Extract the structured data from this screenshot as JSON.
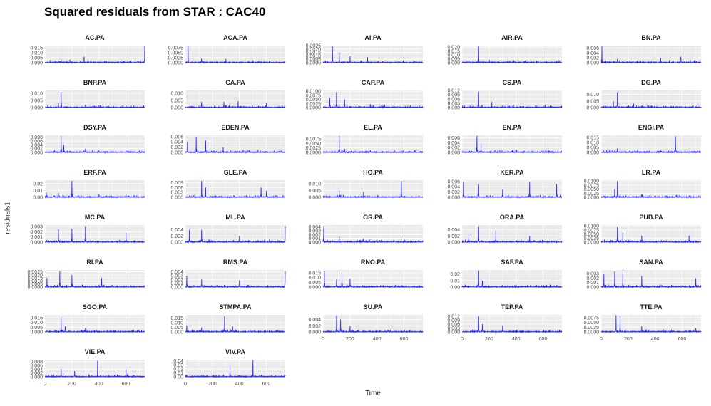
{
  "title": "Squared residuals from STAR : CAC40",
  "colors": {
    "line": "#2b2bff",
    "panel": "#ebebeb",
    "grid": "#ffffff"
  },
  "chart_data": {
    "type": "line",
    "title": "Squared residuals from STAR : CAC40",
    "xlabel": "Time",
    "ylabel": "residuals1",
    "xlim": [
      0,
      740
    ],
    "x_ticks": [
      0,
      200,
      400,
      600
    ],
    "grid": true,
    "legend": "none",
    "n_points": 740,
    "facets": [
      {
        "name": "AC.PA",
        "yticks": [
          "0.000",
          "0.005",
          "0.010",
          "0.015"
        ],
        "ymax": 0.017,
        "spikes": [
          [
            120,
            0.004
          ],
          [
            185,
            0.003
          ],
          [
            290,
            0.006
          ],
          [
            740,
            0.017
          ]
        ]
      },
      {
        "name": "ACA.PA",
        "yticks": [
          "0.0000",
          "0.0025",
          "0.0050",
          "0.0075"
        ],
        "ymax": 0.0085,
        "spikes": [
          [
            20,
            0.0085
          ],
          [
            120,
            0.002
          ],
          [
            300,
            0.0018
          ],
          [
            500,
            0.0012
          ]
        ]
      },
      {
        "name": "AI.PA",
        "yticks": [
          "0.0000",
          "0.0005",
          "0.0010",
          "0.0015",
          "0.0020",
          "0.0025"
        ],
        "ymax": 0.0025,
        "spikes": [
          [
            70,
            0.0024
          ],
          [
            120,
            0.0016
          ],
          [
            200,
            0.001
          ],
          [
            330,
            0.0008
          ]
        ]
      },
      {
        "name": "AIR.PA",
        "yticks": [
          "0.000",
          "0.005",
          "0.010",
          "0.015",
          "0.020"
        ],
        "ymax": 0.022,
        "spikes": [
          [
            120,
            0.021
          ],
          [
            200,
            0.004
          ],
          [
            380,
            0.003
          ]
        ]
      },
      {
        "name": "BN.PA",
        "yticks": [
          "0.000",
          "0.002",
          "0.004",
          "0.006"
        ],
        "ymax": 0.007,
        "spikes": [
          [
            5,
            0.0068
          ],
          [
            120,
            0.0015
          ],
          [
            440,
            0.002
          ],
          [
            590,
            0.0025
          ]
        ]
      },
      {
        "name": "BNP.PA",
        "yticks": [
          "0.000",
          "0.005",
          "0.010"
        ],
        "ymax": 0.012,
        "spikes": [
          [
            120,
            0.011
          ],
          [
            100,
            0.003
          ],
          [
            300,
            0.002
          ],
          [
            600,
            0.0015
          ]
        ]
      },
      {
        "name": "CA.PA",
        "yticks": [
          "0.000",
          "0.005",
          "0.010"
        ],
        "ymax": 0.012,
        "spikes": [
          [
            120,
            0.004
          ],
          [
            285,
            0.004
          ],
          [
            390,
            0.0045
          ],
          [
            600,
            0.003
          ]
        ]
      },
      {
        "name": "CAP.PA",
        "yticks": [
          "0.0000",
          "0.0025",
          "0.0050",
          "0.0075",
          "0.0100"
        ],
        "ymax": 0.0105,
        "spikes": [
          [
            50,
            0.006
          ],
          [
            100,
            0.0095
          ],
          [
            160,
            0.005
          ],
          [
            350,
            0.002
          ]
        ]
      },
      {
        "name": "CS.PA",
        "yticks": [
          "0.000",
          "0.003",
          "0.006",
          "0.009",
          "0.012"
        ],
        "ymax": 0.012,
        "spikes": [
          [
            120,
            0.011
          ],
          [
            220,
            0.004
          ],
          [
            380,
            0.002
          ]
        ]
      },
      {
        "name": "DG.PA",
        "yticks": [
          "0.000",
          "0.005",
          "0.010"
        ],
        "ymax": 0.013,
        "spikes": [
          [
            120,
            0.0115
          ],
          [
            90,
            0.005
          ],
          [
            240,
            0.003
          ]
        ]
      },
      {
        "name": "DSY.PA",
        "yticks": [
          "0.000",
          "0.002",
          "0.004",
          "0.006",
          "0.008"
        ],
        "ymax": 0.009,
        "spikes": [
          [
            120,
            0.0085
          ],
          [
            140,
            0.004
          ],
          [
            300,
            0.002
          ],
          [
            600,
            0.0015
          ]
        ]
      },
      {
        "name": "EDEN.PA",
        "yticks": [
          "0.000",
          "0.002",
          "0.004",
          "0.006"
        ],
        "ymax": 0.0065,
        "spikes": [
          [
            15,
            0.004
          ],
          [
            80,
            0.006
          ],
          [
            150,
            0.0045
          ],
          [
            280,
            0.002
          ]
        ]
      },
      {
        "name": "EL.PA",
        "yticks": [
          "0.0000",
          "0.0025",
          "0.0050",
          "0.0075"
        ],
        "ymax": 0.0095,
        "spikes": [
          [
            120,
            0.009
          ],
          [
            160,
            0.002
          ],
          [
            350,
            0.0015
          ]
        ]
      },
      {
        "name": "EN.PA",
        "yticks": [
          "0.000",
          "0.002",
          "0.004",
          "0.006"
        ],
        "ymax": 0.007,
        "spikes": [
          [
            110,
            0.0068
          ],
          [
            140,
            0.004
          ],
          [
            400,
            0.0012
          ]
        ]
      },
      {
        "name": "ENGI.PA",
        "yticks": [
          "0.000",
          "0.005",
          "0.010",
          "0.015"
        ],
        "ymax": 0.017,
        "spikes": [
          [
            120,
            0.004
          ],
          [
            270,
            0.003
          ],
          [
            550,
            0.016
          ]
        ]
      },
      {
        "name": "ERF.PA",
        "yticks": [
          "0.00",
          "0.01",
          "0.02"
        ],
        "ymax": 0.025,
        "spikes": [
          [
            10,
            0.007
          ],
          [
            100,
            0.006
          ],
          [
            200,
            0.024
          ],
          [
            400,
            0.005
          ],
          [
            600,
            0.004
          ]
        ]
      },
      {
        "name": "GLE.PA",
        "yticks": [
          "0.000",
          "0.003",
          "0.006",
          "0.009"
        ],
        "ymax": 0.0105,
        "spikes": [
          [
            120,
            0.01
          ],
          [
            150,
            0.006
          ],
          [
            560,
            0.006
          ],
          [
            600,
            0.004
          ]
        ]
      },
      {
        "name": "HO.PA",
        "yticks": [
          "0.000",
          "0.005",
          "0.010"
        ],
        "ymax": 0.0125,
        "spikes": [
          [
            120,
            0.005
          ],
          [
            300,
            0.004
          ],
          [
            580,
            0.012
          ]
        ]
      },
      {
        "name": "KER.PA",
        "yticks": [
          "0.000",
          "0.002",
          "0.004",
          "0.006"
        ],
        "ymax": 0.0065,
        "spikes": [
          [
            10,
            0.006
          ],
          [
            120,
            0.005
          ],
          [
            300,
            0.003
          ],
          [
            500,
            0.006
          ],
          [
            700,
            0.005
          ]
        ]
      },
      {
        "name": "LR.PA",
        "yticks": [
          "0.0000",
          "0.0025",
          "0.0050",
          "0.0075",
          "0.0100"
        ],
        "ymax": 0.0105,
        "spikes": [
          [
            120,
            0.01
          ],
          [
            100,
            0.005
          ],
          [
            300,
            0.002
          ]
        ]
      },
      {
        "name": "MC.PA",
        "yticks": [
          "0.000",
          "0.001",
          "0.002",
          "0.003"
        ],
        "ymax": 0.0033,
        "spikes": [
          [
            100,
            0.0025
          ],
          [
            200,
            0.0026
          ],
          [
            300,
            0.0031
          ],
          [
            600,
            0.0018
          ]
        ]
      },
      {
        "name": "ML.PA",
        "yticks": [
          "0.000",
          "0.002",
          "0.004"
        ],
        "ymax": 0.0055,
        "spikes": [
          [
            30,
            0.004
          ],
          [
            120,
            0.004
          ],
          [
            400,
            0.002
          ],
          [
            740,
            0.0053
          ]
        ]
      },
      {
        "name": "OR.PA",
        "yticks": [
          "0.000",
          "0.001",
          "0.002",
          "0.003",
          "0.004"
        ],
        "ymax": 0.0045,
        "spikes": [
          [
            5,
            0.0043
          ],
          [
            120,
            0.0015
          ],
          [
            300,
            0.001
          ],
          [
            600,
            0.001
          ]
        ]
      },
      {
        "name": "ORA.PA",
        "yticks": [
          "0.000",
          "0.002",
          "0.004"
        ],
        "ymax": 0.0055,
        "spikes": [
          [
            50,
            0.0025
          ],
          [
            120,
            0.005
          ],
          [
            250,
            0.004
          ],
          [
            500,
            0.002
          ]
        ]
      },
      {
        "name": "PUB.PA",
        "yticks": [
          "0.0000",
          "0.0025",
          "0.0050",
          "0.0075",
          "0.0100"
        ],
        "ymax": 0.0105,
        "spikes": [
          [
            120,
            0.0095
          ],
          [
            160,
            0.006
          ],
          [
            300,
            0.004
          ],
          [
            650,
            0.004
          ]
        ]
      },
      {
        "name": "RI.PA",
        "yticks": [
          "0.0000",
          "0.0005",
          "0.0010",
          "0.0015",
          "0.0020",
          "0.0025"
        ],
        "ymax": 0.0028,
        "spikes": [
          [
            15,
            0.0015
          ],
          [
            110,
            0.0026
          ],
          [
            200,
            0.002
          ],
          [
            420,
            0.0015
          ]
        ]
      },
      {
        "name": "RMS.PA",
        "yticks": [
          "0.000",
          "0.001",
          "0.002",
          "0.003",
          "0.004"
        ],
        "ymax": 0.0045,
        "spikes": [
          [
            10,
            0.003
          ],
          [
            120,
            0.002
          ],
          [
            400,
            0.0018
          ],
          [
            740,
            0.0042
          ]
        ]
      },
      {
        "name": "RNO.PA",
        "yticks": [
          "0.000",
          "0.005",
          "0.010",
          "0.015"
        ],
        "ymax": 0.018,
        "spikes": [
          [
            10,
            0.017
          ],
          [
            100,
            0.008
          ],
          [
            140,
            0.016
          ],
          [
            200,
            0.009
          ]
        ]
      },
      {
        "name": "SAF.PA",
        "yticks": [
          "0.00",
          "0.01",
          "0.02"
        ],
        "ymax": 0.026,
        "spikes": [
          [
            120,
            0.025
          ],
          [
            150,
            0.01
          ],
          [
            300,
            0.003
          ]
        ]
      },
      {
        "name": "SAN.PA",
        "yticks": [
          "0.000",
          "0.001",
          "0.002",
          "0.003"
        ],
        "ymax": 0.0038,
        "spikes": [
          [
            20,
            0.003
          ],
          [
            100,
            0.0035
          ],
          [
            160,
            0.0033
          ],
          [
            300,
            0.0025
          ],
          [
            700,
            0.002
          ]
        ]
      },
      {
        "name": "SGO.PA",
        "yticks": [
          "0.000",
          "0.005",
          "0.010",
          "0.015"
        ],
        "ymax": 0.018,
        "spikes": [
          [
            120,
            0.016
          ],
          [
            150,
            0.006
          ],
          [
            300,
            0.004
          ]
        ]
      },
      {
        "name": "STMPA.PA",
        "yticks": [
          "0.000",
          "0.005",
          "0.010",
          "0.015"
        ],
        "ymax": 0.0185,
        "spikes": [
          [
            10,
            0.007
          ],
          [
            120,
            0.005
          ],
          [
            290,
            0.017
          ],
          [
            350,
            0.006
          ]
        ]
      },
      {
        "name": "SU.PA",
        "yticks": [
          "0.000",
          "0.002",
          "0.004"
        ],
        "ymax": 0.0055,
        "spikes": [
          [
            100,
            0.0052
          ],
          [
            130,
            0.004
          ],
          [
            200,
            0.002
          ]
        ]
      },
      {
        "name": "TEP.PA",
        "yticks": [
          "0.000",
          "0.003",
          "0.006",
          "0.009",
          "0.012"
        ],
        "ymax": 0.013,
        "spikes": [
          [
            120,
            0.012
          ],
          [
            150,
            0.006
          ],
          [
            300,
            0.005
          ]
        ]
      },
      {
        "name": "TTE.PA",
        "yticks": [
          "0.0000",
          "0.0025",
          "0.0050",
          "0.0075"
        ],
        "ymax": 0.009,
        "spikes": [
          [
            110,
            0.0088
          ],
          [
            140,
            0.0085
          ],
          [
            300,
            0.003
          ],
          [
            700,
            0.002
          ]
        ]
      },
      {
        "name": "VIE.PA",
        "yticks": [
          "0.000",
          "0.002",
          "0.004",
          "0.006",
          "0.008"
        ],
        "ymax": 0.009,
        "spikes": [
          [
            120,
            0.004
          ],
          [
            220,
            0.003
          ],
          [
            390,
            0.0085
          ],
          [
            600,
            0.004
          ]
        ]
      },
      {
        "name": "VIV.PA",
        "yticks": [
          "0.00",
          "0.01",
          "0.02",
          "0.03",
          "0.04"
        ],
        "ymax": 0.043,
        "spikes": [
          [
            120,
            0.004
          ],
          [
            330,
            0.03
          ],
          [
            500,
            0.042
          ],
          [
            740,
            0.004
          ]
        ]
      }
    ]
  }
}
